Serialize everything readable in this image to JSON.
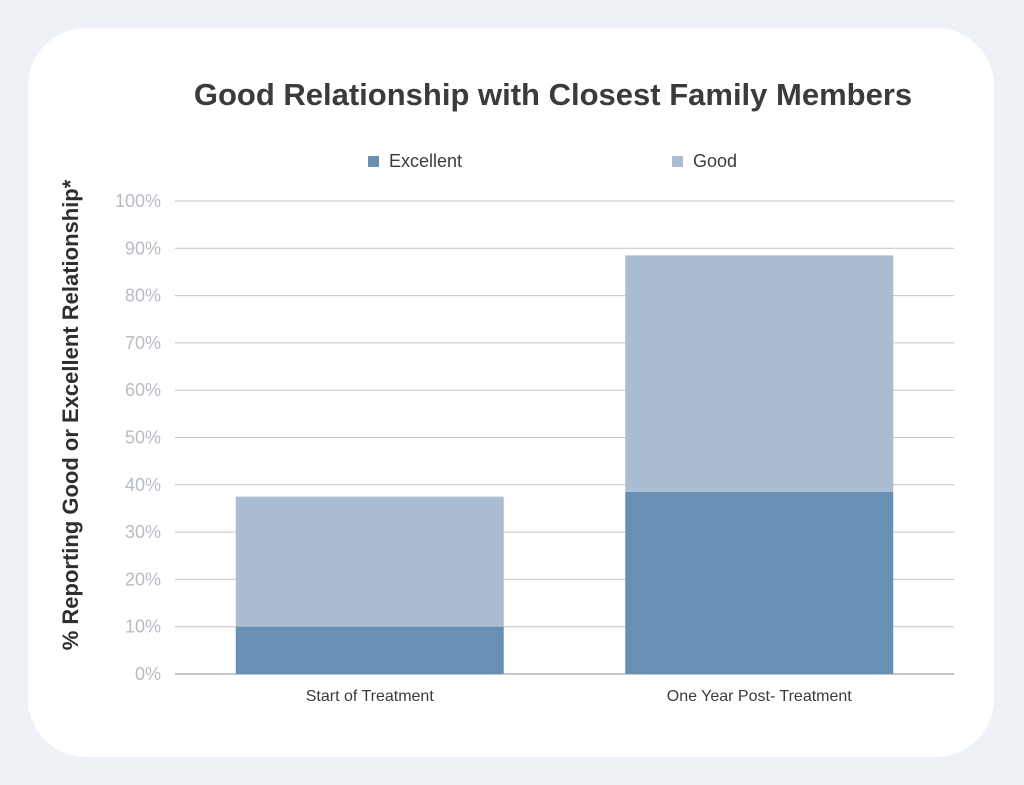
{
  "chart_data": {
    "type": "bar",
    "stacked": true,
    "title": "Good Relationship with Closest Family Members",
    "ylabel": "% Reporting Good or Excellent Relationship*",
    "xlabel": "",
    "ylim": [
      0,
      100
    ],
    "yticks": [
      "0%",
      "10%",
      "20%",
      "30%",
      "40%",
      "50%",
      "60%",
      "70%",
      "80%",
      "90%",
      "100%"
    ],
    "grid": true,
    "legend_position": "top",
    "categories": [
      "Start of Treatment",
      "One Year Post- Treatment"
    ],
    "series": [
      {
        "name": "Excellent",
        "values": [
          10,
          38.5
        ],
        "color": "#6790b3"
      },
      {
        "name": "Good",
        "values": [
          27.5,
          50
        ],
        "color": "#abbdd3"
      }
    ]
  }
}
